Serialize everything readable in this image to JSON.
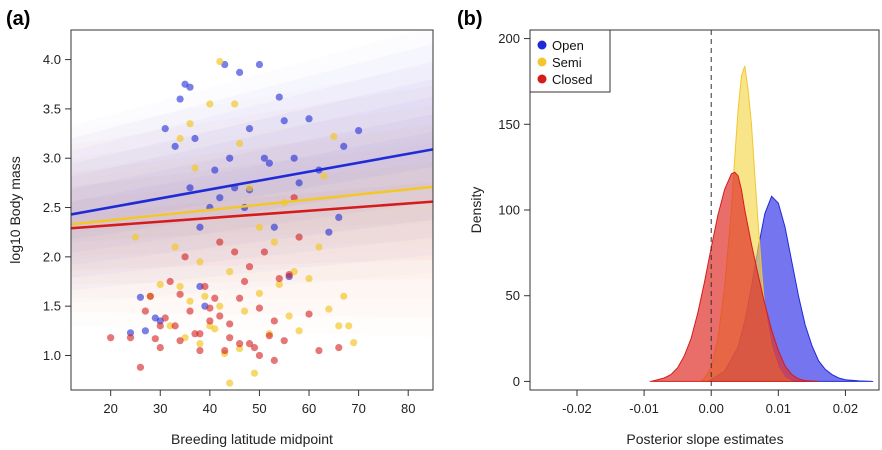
{
  "colors": {
    "open": "#1f2bd6",
    "semi": "#f2c72e",
    "closed": "#d41c1c",
    "open_fill": "#3a3ae8",
    "semi_fill": "#f4d54a",
    "closed_fill": "#e0302a"
  },
  "panel_a": {
    "label": "(a)",
    "xlabel": "Breeding latitude midpoint",
    "ylabel": "log10 Body mass"
  },
  "panel_b": {
    "label": "(b)",
    "xlabel": "Posterior slope estimates",
    "ylabel": "Density"
  },
  "legend": {
    "placement": "top-left",
    "entries": [
      "Open",
      "Semi",
      "Closed"
    ]
  },
  "chart_data": [
    {
      "type": "scatter",
      "title": "",
      "xlabel": "Breeding latitude midpoint",
      "ylabel": "log10 Body mass",
      "xlim": [
        12,
        85
      ],
      "ylim": [
        0.65,
        4.3
      ],
      "xticks": [
        20,
        30,
        40,
        50,
        60,
        70,
        80
      ],
      "yticks": [
        1.0,
        1.5,
        2.0,
        2.5,
        3.0,
        3.5,
        4.0
      ],
      "tick_labels_x": [
        "20",
        "30",
        "40",
        "50",
        "60",
        "70",
        "80"
      ],
      "tick_labels_y": [
        "1.0",
        "1.5",
        "2.0",
        "2.5",
        "3.0",
        "3.5",
        "4.0"
      ],
      "fit_lines": [
        {
          "name": "Open",
          "x": [
            12,
            85
          ],
          "y": [
            2.43,
            3.09
          ]
        },
        {
          "name": "Semi",
          "x": [
            12,
            85
          ],
          "y": [
            2.33,
            2.71
          ]
        },
        {
          "name": "Closed",
          "x": [
            12,
            85
          ],
          "y": [
            2.29,
            2.56
          ]
        }
      ],
      "series": [
        {
          "name": "Open",
          "points": [
            [
              24,
              1.23
            ],
            [
              26,
              1.59
            ],
            [
              27,
              1.25
            ],
            [
              29,
              1.38
            ],
            [
              30,
              1.35
            ],
            [
              31,
              3.3
            ],
            [
              33,
              3.12
            ],
            [
              34,
              3.6
            ],
            [
              35,
              3.75
            ],
            [
              36,
              3.72
            ],
            [
              37,
              3.2
            ],
            [
              38,
              1.7
            ],
            [
              39,
              1.5
            ],
            [
              41,
              2.88
            ],
            [
              42,
              2.6
            ],
            [
              43,
              3.95
            ],
            [
              45,
              2.7
            ],
            [
              46,
              3.87
            ],
            [
              48,
              2.68
            ],
            [
              50,
              3.95
            ],
            [
              51,
              3.0
            ],
            [
              52,
              2.95
            ],
            [
              54,
              3.62
            ],
            [
              55,
              3.38
            ],
            [
              56,
              1.8
            ],
            [
              57,
              3.0
            ],
            [
              58,
              2.75
            ],
            [
              60,
              3.4
            ],
            [
              62,
              2.88
            ],
            [
              64,
              2.25
            ],
            [
              66,
              2.4
            ],
            [
              67,
              3.12
            ],
            [
              70,
              3.28
            ],
            [
              36,
              2.7
            ],
            [
              40,
              2.5
            ],
            [
              47,
              2.5
            ],
            [
              53,
              2.3
            ],
            [
              38,
              2.3
            ],
            [
              44,
              3.0
            ],
            [
              48,
              3.3
            ]
          ]
        },
        {
          "name": "Semi",
          "points": [
            [
              25,
              2.2
            ],
            [
              28,
              1.6
            ],
            [
              30,
              1.72
            ],
            [
              32,
              1.3
            ],
            [
              33,
              2.1
            ],
            [
              34,
              1.7
            ],
            [
              35,
              1.18
            ],
            [
              36,
              3.35
            ],
            [
              37,
              2.9
            ],
            [
              38,
              1.12
            ],
            [
              39,
              1.6
            ],
            [
              40,
              3.55
            ],
            [
              41,
              1.27
            ],
            [
              42,
              3.98
            ],
            [
              43,
              1.02
            ],
            [
              44,
              0.72
            ],
            [
              45,
              3.55
            ],
            [
              46,
              3.15
            ],
            [
              47,
              1.45
            ],
            [
              48,
              2.7
            ],
            [
              49,
              0.82
            ],
            [
              50,
              1.63
            ],
            [
              52,
              1.22
            ],
            [
              53,
              2.15
            ],
            [
              54,
              1.72
            ],
            [
              55,
              2.55
            ],
            [
              56,
              1.4
            ],
            [
              57,
              1.85
            ],
            [
              58,
              1.25
            ],
            [
              60,
              1.78
            ],
            [
              62,
              2.1
            ],
            [
              63,
              2.82
            ],
            [
              64,
              1.47
            ],
            [
              65,
              3.22
            ],
            [
              66,
              1.3
            ],
            [
              67,
              1.6
            ],
            [
              68,
              1.3
            ],
            [
              69,
              1.13
            ],
            [
              34,
              3.2
            ],
            [
              38,
              1.95
            ],
            [
              42,
              1.5
            ],
            [
              46,
              1.07
            ],
            [
              50,
              2.3
            ],
            [
              40,
              1.3
            ],
            [
              36,
              1.55
            ],
            [
              44,
              1.85
            ]
          ]
        },
        {
          "name": "Closed",
          "points": [
            [
              20,
              1.18
            ],
            [
              24,
              1.18
            ],
            [
              26,
              0.88
            ],
            [
              27,
              1.45
            ],
            [
              28,
              1.6
            ],
            [
              29,
              1.17
            ],
            [
              30,
              1.08
            ],
            [
              31,
              1.38
            ],
            [
              32,
              1.75
            ],
            [
              33,
              1.3
            ],
            [
              34,
              1.15
            ],
            [
              35,
              2.0
            ],
            [
              36,
              1.45
            ],
            [
              37,
              1.22
            ],
            [
              38,
              1.05
            ],
            [
              39,
              1.7
            ],
            [
              40,
              1.35
            ],
            [
              41,
              1.58
            ],
            [
              42,
              2.15
            ],
            [
              43,
              1.05
            ],
            [
              44,
              1.32
            ],
            [
              45,
              2.05
            ],
            [
              46,
              1.12
            ],
            [
              47,
              1.75
            ],
            [
              48,
              1.9
            ],
            [
              49,
              1.08
            ],
            [
              50,
              1.48
            ],
            [
              51,
              2.05
            ],
            [
              52,
              1.2
            ],
            [
              53,
              1.35
            ],
            [
              54,
              1.78
            ],
            [
              55,
              1.15
            ],
            [
              56,
              1.82
            ],
            [
              57,
              2.6
            ],
            [
              58,
              2.2
            ],
            [
              60,
              1.42
            ],
            [
              62,
              1.05
            ],
            [
              66,
              1.08
            ],
            [
              34,
              1.62
            ],
            [
              38,
              1.22
            ],
            [
              42,
              1.4
            ],
            [
              46,
              1.58
            ],
            [
              50,
              1.0
            ],
            [
              53,
              0.95
            ],
            [
              30,
              1.3
            ],
            [
              40,
              1.48
            ],
            [
              44,
              1.18
            ],
            [
              48,
              1.12
            ]
          ]
        }
      ]
    },
    {
      "type": "area",
      "title": "",
      "xlabel": "Posterior slope estimates",
      "ylabel": "Density",
      "xlim": [
        -0.027,
        0.025
      ],
      "ylim": [
        -5,
        205
      ],
      "xticks": [
        -0.02,
        -0.01,
        0.0,
        0.01,
        0.02
      ],
      "yticks": [
        0,
        50,
        100,
        150,
        200
      ],
      "tick_labels_x": [
        "-0.02",
        "-0.01",
        "0.00",
        "0.01",
        "0.02"
      ],
      "tick_labels_y": [
        "0",
        "50",
        "100",
        "150",
        "200"
      ],
      "reference_line_x": 0.0,
      "series": [
        {
          "name": "Open",
          "x": [
            -0.0005,
            0.0,
            0.002,
            0.004,
            0.005,
            0.006,
            0.007,
            0.008,
            0.009,
            0.01,
            0.011,
            0.012,
            0.013,
            0.014,
            0.015,
            0.016,
            0.017,
            0.018,
            0.019,
            0.02,
            0.022,
            0.024
          ],
          "y": [
            0,
            1,
            6,
            20,
            35,
            55,
            78,
            98,
            108,
            104,
            90,
            70,
            50,
            33,
            21,
            12,
            7,
            4,
            2,
            1,
            0.3,
            0
          ]
        },
        {
          "name": "Semi",
          "x": [
            -0.0015,
            -0.001,
            0.0,
            0.001,
            0.002,
            0.003,
            0.0035,
            0.004,
            0.0045,
            0.005,
            0.0055,
            0.006,
            0.0065,
            0.007,
            0.0075,
            0.008,
            0.009,
            0.01,
            0.011,
            0.012
          ],
          "y": [
            0,
            2,
            8,
            25,
            55,
            100,
            130,
            158,
            178,
            184,
            170,
            150,
            120,
            92,
            65,
            42,
            20,
            8,
            2,
            0
          ]
        },
        {
          "name": "Closed",
          "x": [
            -0.009,
            -0.008,
            -0.007,
            -0.006,
            -0.005,
            -0.004,
            -0.003,
            -0.002,
            -0.001,
            0.0,
            0.001,
            0.002,
            0.003,
            0.0035,
            0.004,
            0.0045,
            0.005,
            0.006,
            0.007,
            0.008,
            0.009,
            0.01,
            0.011,
            0.012,
            0.013,
            0.014,
            0.016
          ],
          "y": [
            0,
            1,
            2,
            4,
            8,
            15,
            25,
            40,
            58,
            78,
            97,
            112,
            121,
            122,
            120,
            112,
            100,
            80,
            62,
            45,
            30,
            18,
            9,
            4,
            1.5,
            0.5,
            0
          ]
        }
      ]
    }
  ]
}
